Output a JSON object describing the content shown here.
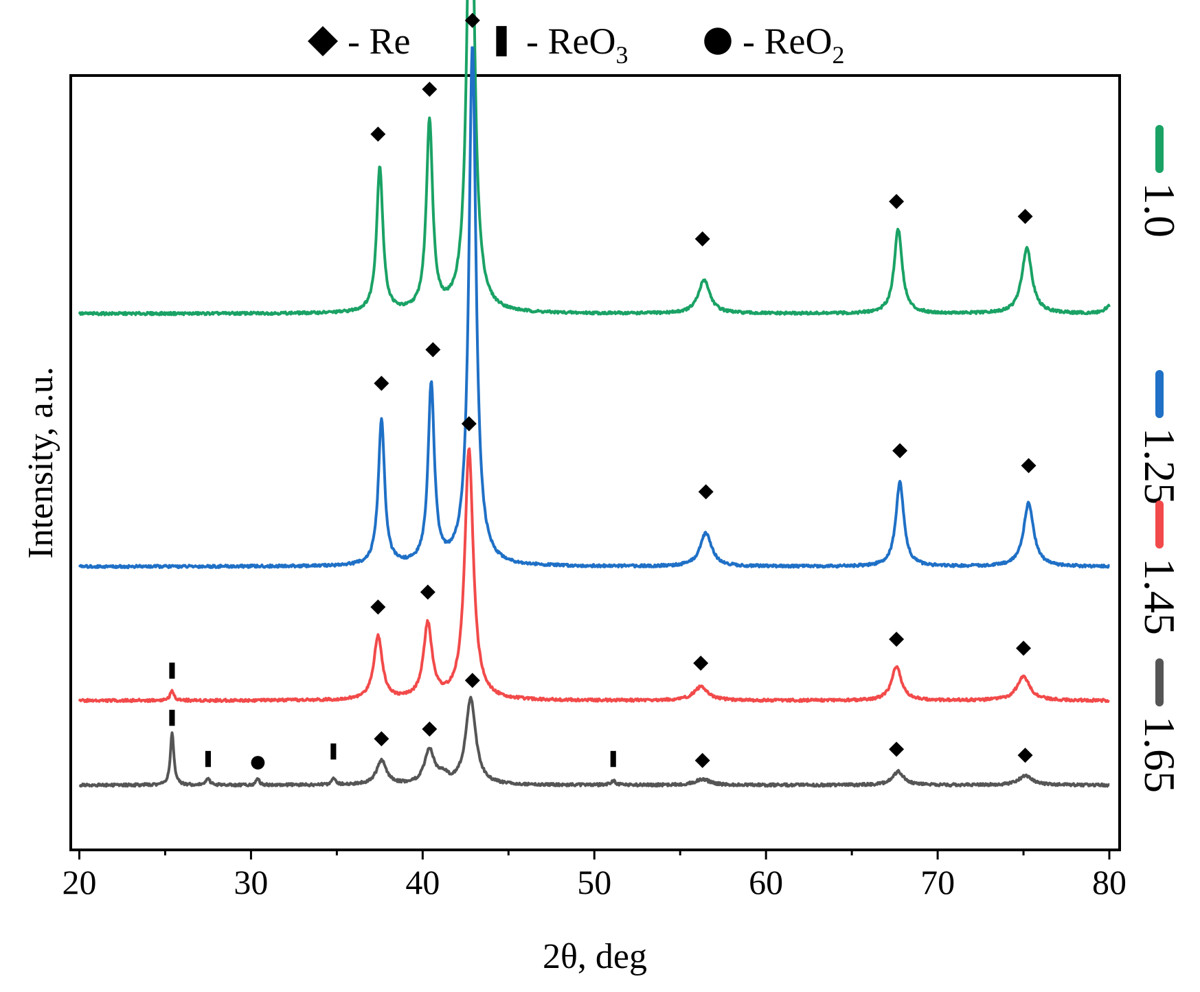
{
  "chart_data": {
    "type": "line",
    "title": "",
    "xlabel": "2θ, deg",
    "ylabel": "Intensity, a.u.",
    "xlim": [
      19.5,
      80.6
    ],
    "xticks": [
      20,
      30,
      40,
      50,
      60,
      70,
      80
    ],
    "x_minor_ticks": [
      25,
      35,
      45,
      55,
      65,
      75
    ],
    "phase_legend": [
      {
        "marker": "diamond",
        "label": "- Re",
        "sub": ""
      },
      {
        "marker": "bar",
        "label": "- ReO",
        "sub": "3"
      },
      {
        "marker": "circle",
        "label": "- ReO",
        "sub": "2"
      }
    ],
    "series": [
      {
        "name": "1.0",
        "color": "#1aa265",
        "baseline": 0.7,
        "peaks": [
          [
            37.5,
            0.195,
            0.22
          ],
          [
            40.4,
            0.255,
            0.22
          ],
          [
            42.8,
            0.675,
            0.25
          ],
          [
            56.4,
            0.045,
            0.4
          ],
          [
            67.7,
            0.113,
            0.28
          ],
          [
            75.2,
            0.088,
            0.35
          ],
          [
            80.0,
            0.01,
            0.3
          ]
        ],
        "markers": [
          {
            "type": "diamond",
            "x": 37.4,
            "h": 0.24
          },
          {
            "type": "diamond",
            "x": 40.4,
            "h": 0.3
          },
          {
            "type": "diamond",
            "x": 42.7,
            "h": 0.71
          },
          {
            "type": "diamond",
            "x": 56.3,
            "h": 0.1
          },
          {
            "type": "diamond",
            "x": 67.6,
            "h": 0.15
          },
          {
            "type": "diamond",
            "x": 75.1,
            "h": 0.13
          }
        ]
      },
      {
        "name": "1.25",
        "color": "#1f70c6",
        "baseline": 0.362,
        "peaks": [
          [
            37.6,
            0.195,
            0.22
          ],
          [
            40.5,
            0.24,
            0.22
          ],
          [
            42.9,
            0.695,
            0.25
          ],
          [
            56.5,
            0.045,
            0.4
          ],
          [
            67.8,
            0.113,
            0.28
          ],
          [
            75.3,
            0.085,
            0.35
          ]
        ],
        "markers": [
          {
            "type": "diamond",
            "x": 37.6,
            "h": 0.245
          },
          {
            "type": "diamond",
            "x": 40.6,
            "h": 0.29
          },
          {
            "type": "diamond",
            "x": 42.9,
            "h": 0.73
          },
          {
            "type": "diamond",
            "x": 56.5,
            "h": 0.1
          },
          {
            "type": "diamond",
            "x": 67.8,
            "h": 0.155
          },
          {
            "type": "diamond",
            "x": 75.3,
            "h": 0.135
          }
        ]
      },
      {
        "name": "1.45",
        "color": "#f24a4a",
        "baseline": 0.183,
        "peaks": [
          [
            25.4,
            0.012,
            0.15
          ],
          [
            37.4,
            0.085,
            0.3
          ],
          [
            40.3,
            0.1,
            0.3
          ],
          [
            42.7,
            0.335,
            0.3
          ],
          [
            56.2,
            0.018,
            0.5
          ],
          [
            67.6,
            0.045,
            0.35
          ],
          [
            75.0,
            0.032,
            0.45
          ]
        ],
        "markers": [
          {
            "type": "bar",
            "x": 25.4,
            "h": 0.04
          },
          {
            "type": "diamond",
            "x": 37.4,
            "h": 0.125
          },
          {
            "type": "diamond",
            "x": 40.3,
            "h": 0.145
          },
          {
            "type": "diamond",
            "x": 42.7,
            "h": 0.37
          },
          {
            "type": "diamond",
            "x": 56.2,
            "h": 0.05
          },
          {
            "type": "diamond",
            "x": 67.6,
            "h": 0.082
          },
          {
            "type": "diamond",
            "x": 75.0,
            "h": 0.07
          }
        ]
      },
      {
        "name": "1.65",
        "color": "#555555",
        "baseline": 0.07,
        "peaks": [
          [
            25.4,
            0.07,
            0.12
          ],
          [
            27.5,
            0.008,
            0.15
          ],
          [
            30.4,
            0.008,
            0.12
          ],
          [
            34.8,
            0.01,
            0.12
          ],
          [
            37.6,
            0.032,
            0.35
          ],
          [
            40.4,
            0.045,
            0.35
          ],
          [
            41.2,
            0.01,
            0.3
          ],
          [
            42.8,
            0.115,
            0.35
          ],
          [
            51.1,
            0.006,
            0.15
          ],
          [
            56.3,
            0.008,
            0.5
          ],
          [
            67.7,
            0.018,
            0.4
          ],
          [
            75.1,
            0.012,
            0.5
          ]
        ],
        "markers": [
          {
            "type": "bar",
            "x": 25.4,
            "h": 0.09
          },
          {
            "type": "bar",
            "x": 27.5,
            "h": 0.035
          },
          {
            "type": "circle",
            "x": 30.4,
            "h": 0.03
          },
          {
            "type": "bar",
            "x": 34.8,
            "h": 0.045
          },
          {
            "type": "diamond",
            "x": 37.6,
            "h": 0.062
          },
          {
            "type": "diamond",
            "x": 40.4,
            "h": 0.075
          },
          {
            "type": "diamond",
            "x": 42.9,
            "h": 0.14
          },
          {
            "type": "bar",
            "x": 51.1,
            "h": 0.035
          },
          {
            "type": "diamond",
            "x": 56.3,
            "h": 0.033
          },
          {
            "type": "diamond",
            "x": 67.6,
            "h": 0.048
          },
          {
            "type": "diamond",
            "x": 75.1,
            "h": 0.04
          }
        ]
      }
    ]
  }
}
